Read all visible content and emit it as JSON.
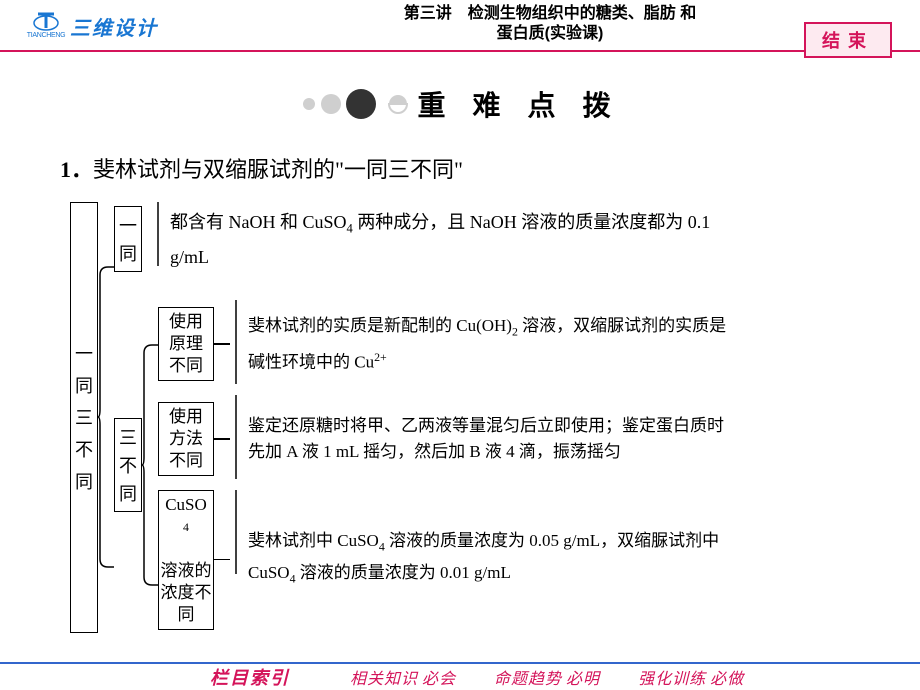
{
  "colors": {
    "brand_magenta": "#d4145a",
    "brand_blue": "#1976d2",
    "footer_border": "#3366cc",
    "text": "#000000",
    "end_bg": "#fdeaf0",
    "bg": "#ffffff"
  },
  "typography": {
    "body_font": "SimSun",
    "brand_font": "KaiTi",
    "title_font": "KaiTi",
    "title_fontsize": 28,
    "body_fontsize": 18,
    "label3_fontsize": 17
  },
  "header": {
    "logo_cn": "三维设计",
    "logo_en": "TIANCHENG",
    "title_line1": "第三讲　检测生物组织中的糖类、脂肪 和",
    "title_line2": "蛋白质(实验课)",
    "end_button": "结束"
  },
  "title_banner": {
    "text": "重 难 点 拨",
    "circle_colors": [
      "#cfcfcf",
      "#cfcfcf",
      "#333333",
      "#cfcfcf"
    ],
    "circle_radii": [
      6,
      10,
      15,
      9
    ]
  },
  "section": {
    "number": "1．",
    "heading": "斐林试剂与双缩脲试剂的\"一同三不同\""
  },
  "diagram": {
    "root_label": [
      "一",
      "同",
      "三",
      "不",
      "同"
    ],
    "branches": [
      {
        "label": [
          "一",
          "同"
        ],
        "content_html": "都含有 NaOH 和 CuSO<sub>4</sub> 两种成分，且 NaOH 溶液的质量浓度都为 0.1 g/mL"
      },
      {
        "label": [
          "三",
          "不",
          "同"
        ],
        "children": [
          {
            "label_html": "使用<br>原理<br>不同",
            "content_html": "斐林试剂的实质是新配制的 Cu(OH)<sub>2</sub> 溶液，双缩脲试剂的实质是碱性环境中的 Cu<sup>2+</sup>"
          },
          {
            "label_html": "使用<br>方法<br>不同",
            "content_html": "鉴定还原糖时将甲、乙两液等量混匀后立即使用；鉴定蛋白质时先加 A 液 1 mL 摇匀，然后加 B 液 4 滴，振荡摇匀"
          },
          {
            "label_html": "CuSO<sub>4</sub><br>溶液的<br>浓度不同",
            "content_html": "斐林试剂中 CuSO<sub>4</sub> 溶液的质量浓度为 0.05 g/mL，双缩脲试剂中 CuSO<sub>4</sub> 溶液的质量浓度为 0.01 g/mL"
          }
        ]
      }
    ],
    "border_color": "#000000",
    "border_width": 1.5
  },
  "footer": {
    "label": "栏目索引",
    "links": [
      {
        "a": "相关知识",
        "b": "必会"
      },
      {
        "a": "命题趋势",
        "b": "必明"
      },
      {
        "a": "强化训练",
        "b": "必做"
      }
    ]
  }
}
